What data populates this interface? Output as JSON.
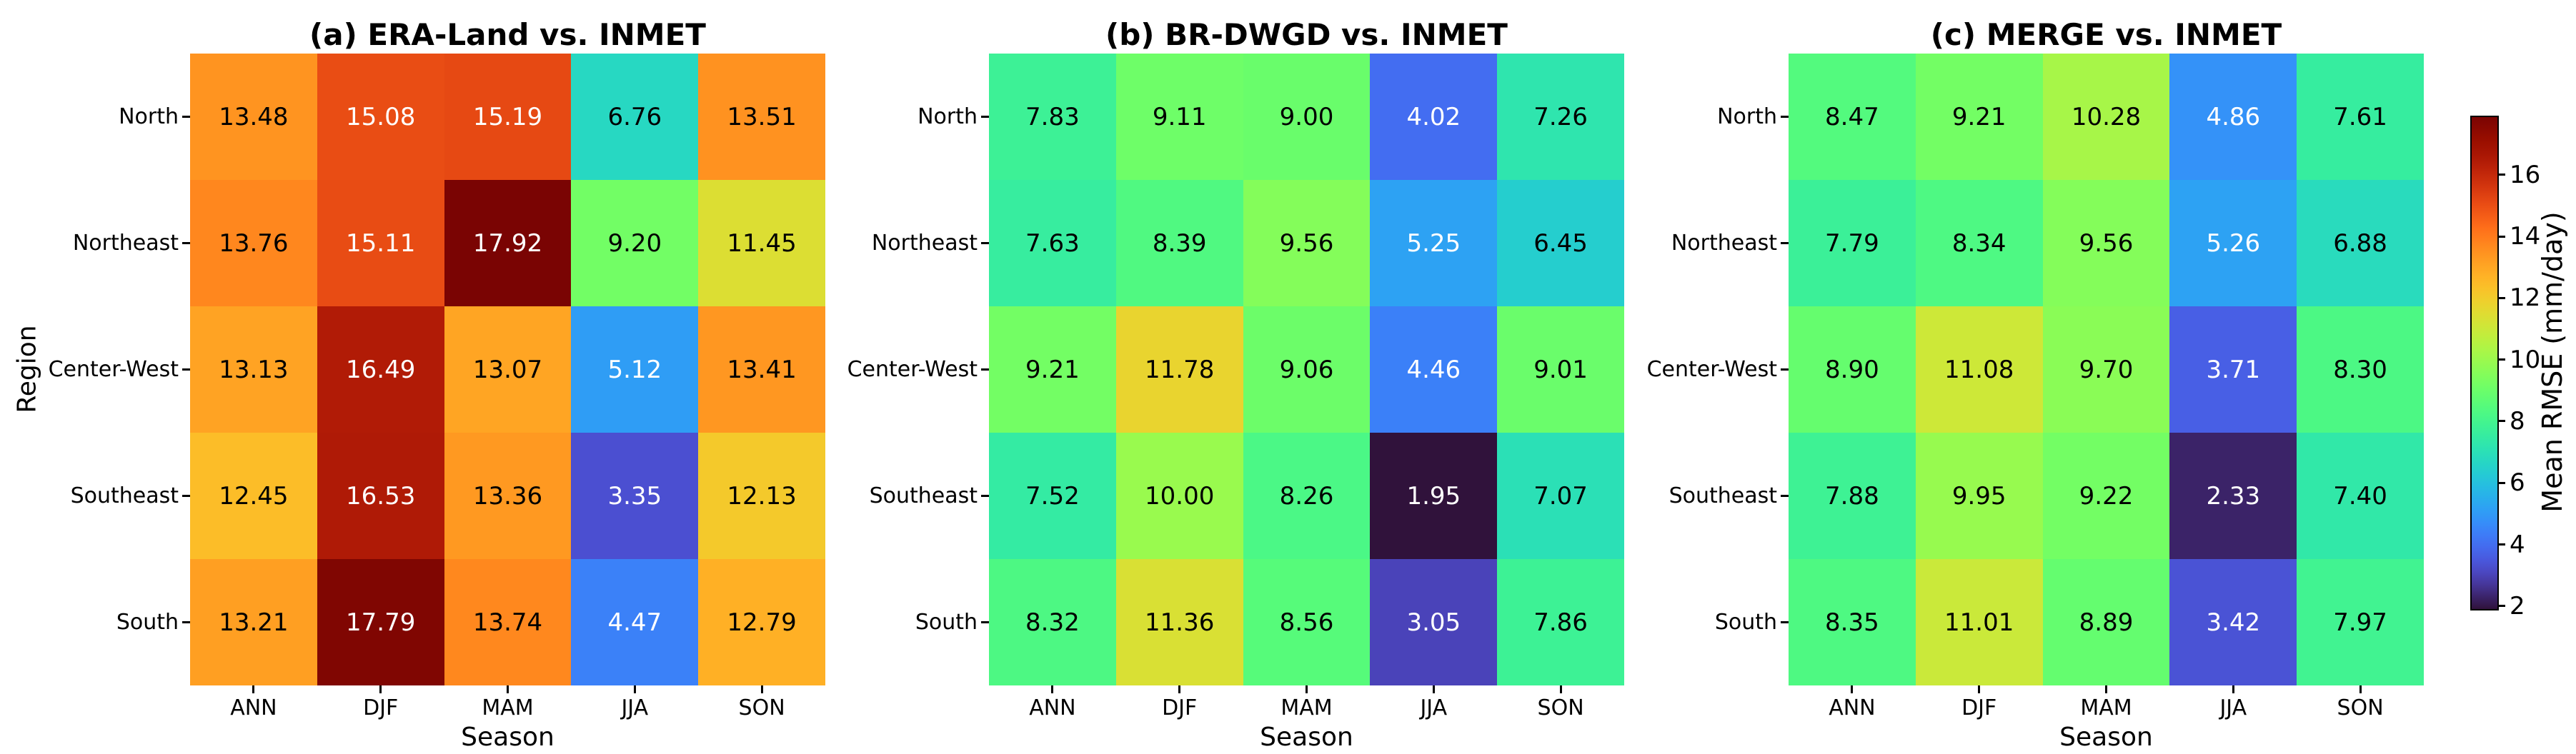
{
  "axis": {
    "x_label": "Season",
    "y_label": "Region",
    "seasons": [
      "ANN",
      "DJF",
      "MAM",
      "JJA",
      "SON"
    ],
    "regions": [
      "North",
      "Northeast",
      "Center-West",
      "Southeast",
      "South"
    ]
  },
  "colorbar": {
    "label": "Mean RMSE (mm/day)",
    "ticks": [
      16,
      14,
      12,
      10,
      8,
      6,
      4,
      2
    ],
    "vmin": 1.95,
    "vmax": 17.92,
    "colormap": "turbo",
    "top_color": "#7a0403",
    "bottom_color": "#30123b"
  },
  "annot_style": {
    "white_text_below": 5.8,
    "white_text_above": 14.4,
    "light_text_color": "#ffffff",
    "dark_text_color": "#000000",
    "decimals": 2
  },
  "chart_data": [
    {
      "type": "heatmap",
      "title": "(a) ERA-Land vs. INMET",
      "x": [
        "ANN",
        "DJF",
        "MAM",
        "JJA",
        "SON"
      ],
      "y": [
        "North",
        "Northeast",
        "Center-West",
        "Southeast",
        "South"
      ],
      "xlabel": "Season",
      "ylabel": "Region",
      "colormap": "turbo",
      "vmin": 1.95,
      "vmax": 17.92,
      "values": [
        [
          13.48,
          15.08,
          15.19,
          6.76,
          13.51
        ],
        [
          13.76,
          15.11,
          17.92,
          9.2,
          11.45
        ],
        [
          13.13,
          16.49,
          13.07,
          5.12,
          13.41
        ],
        [
          12.45,
          16.53,
          13.36,
          3.35,
          12.13
        ],
        [
          13.21,
          17.79,
          13.74,
          4.47,
          12.79
        ]
      ]
    },
    {
      "type": "heatmap",
      "title": "(b) BR-DWGD vs. INMET",
      "x": [
        "ANN",
        "DJF",
        "MAM",
        "JJA",
        "SON"
      ],
      "y": [
        "North",
        "Northeast",
        "Center-West",
        "Southeast",
        "South"
      ],
      "xlabel": "Season",
      "ylabel": "",
      "colormap": "turbo",
      "vmin": 1.95,
      "vmax": 17.92,
      "values": [
        [
          7.83,
          9.11,
          9.0,
          4.02,
          7.26
        ],
        [
          7.63,
          8.39,
          9.56,
          5.25,
          6.45
        ],
        [
          9.21,
          11.78,
          9.06,
          4.46,
          9.01
        ],
        [
          7.52,
          10.0,
          8.26,
          1.95,
          7.07
        ],
        [
          8.32,
          11.36,
          8.56,
          3.05,
          7.86
        ]
      ]
    },
    {
      "type": "heatmap",
      "title": "(c) MERGE vs. INMET",
      "x": [
        "ANN",
        "DJF",
        "MAM",
        "JJA",
        "SON"
      ],
      "y": [
        "North",
        "Northeast",
        "Center-West",
        "Southeast",
        "South"
      ],
      "xlabel": "Season",
      "ylabel": "",
      "colormap": "turbo",
      "vmin": 1.95,
      "vmax": 17.92,
      "values": [
        [
          8.47,
          9.21,
          10.28,
          4.86,
          7.61
        ],
        [
          7.79,
          8.34,
          9.56,
          5.26,
          6.88
        ],
        [
          8.9,
          11.08,
          9.7,
          3.71,
          8.3
        ],
        [
          7.88,
          9.95,
          9.22,
          2.33,
          7.4
        ],
        [
          8.35,
          11.01,
          8.89,
          3.42,
          7.97
        ]
      ]
    }
  ]
}
